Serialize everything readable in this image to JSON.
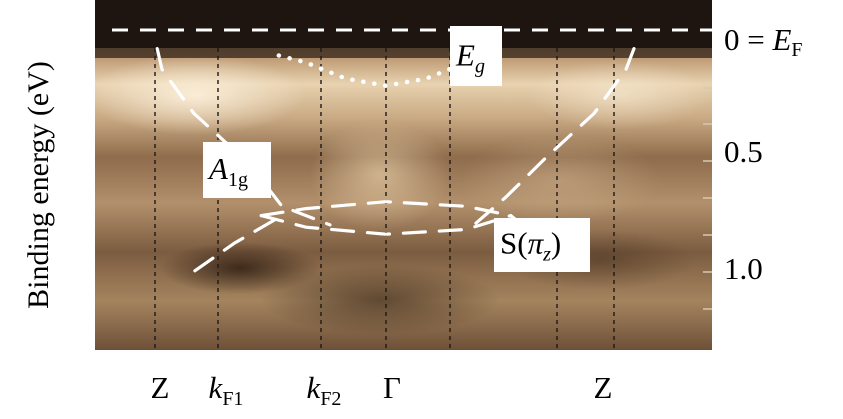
{
  "chart_data": {
    "type": "heatmap",
    "ylabel": "Binding energy (eV)",
    "y_axis": {
      "inverted": true,
      "ticks": [
        {
          "value": 0.0,
          "label": "0 = ",
          "sym": "E",
          "sub": "F"
        },
        {
          "value": 0.5,
          "label": "0.5"
        },
        {
          "value": 1.0,
          "label": "1.0"
        }
      ]
    },
    "x_axis": {
      "ticks": [
        {
          "pos": "Z1",
          "label": "Z"
        },
        {
          "pos": "kF1",
          "label": "k",
          "sub": "F1"
        },
        {
          "pos": "kF2",
          "label": "k",
          "sub": "F2"
        },
        {
          "pos": "G",
          "label": "Γ"
        },
        {
          "pos": "Z2",
          "label": "Z"
        }
      ]
    },
    "fermi_level": {
      "energy": 0.0,
      "style": "dashed",
      "color": "#ffffff"
    },
    "vertical_guides": [
      "Z1",
      "kF1",
      "kF2",
      "G",
      "kFa",
      "kFb",
      "Z2"
    ],
    "bands": [
      {
        "label": "E",
        "sub": "g",
        "style": "dotted",
        "points": [
          [
            -0.67,
            0.11
          ],
          [
            -0.5,
            0.14
          ],
          [
            -0.25,
            0.21
          ],
          [
            0,
            0.24
          ],
          [
            0.25,
            0.21
          ],
          [
            0.5,
            0.14
          ],
          [
            0.67,
            0.11
          ]
        ]
      },
      {
        "label": "A",
        "sub": "1g",
        "style": "dashed",
        "points": [
          [
            -1.43,
            0.08
          ],
          [
            -1.4,
            0.17
          ],
          [
            -1.2,
            0.36
          ],
          [
            -0.85,
            0.58
          ],
          [
            -0.65,
            0.76
          ],
          [
            -0.35,
            0.84
          ]
        ]
      },
      {
        "style": "dashed",
        "points": [
          [
            1.55,
            0.08
          ],
          [
            1.5,
            0.17
          ],
          [
            1.3,
            0.36
          ],
          [
            1.0,
            0.55
          ],
          [
            0.75,
            0.72
          ],
          [
            0.55,
            0.84
          ]
        ]
      },
      {
        "label": "S(",
        "sym": "π",
        "sub": "z",
        "tail": ")",
        "style": "dashed",
        "points": [
          [
            -0.78,
            0.8
          ],
          [
            -0.5,
            0.85
          ],
          [
            0,
            0.88
          ],
          [
            0.5,
            0.86
          ],
          [
            0.78,
            0.8
          ]
        ]
      },
      {
        "style": "dashed",
        "points": [
          [
            -0.78,
            0.8
          ],
          [
            -0.5,
            0.77
          ],
          [
            0,
            0.74
          ],
          [
            0.5,
            0.76
          ],
          [
            0.78,
            0.8
          ]
        ]
      },
      {
        "style": "dashed",
        "points": [
          [
            -0.7,
            0.82
          ],
          [
            -0.95,
            0.92
          ],
          [
            -1.22,
            1.05
          ]
        ]
      },
      {
        "style": "dashed",
        "points": [
          [
            0.78,
            0.8
          ],
          [
            1.0,
            0.92
          ],
          [
            1.15,
            1.02
          ]
        ]
      }
    ],
    "grid": false,
    "legend": "none"
  }
}
